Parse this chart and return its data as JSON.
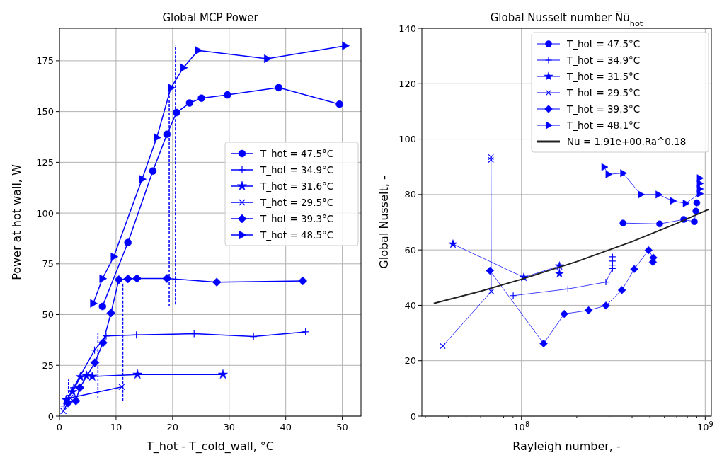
{
  "chart_data": [
    {
      "type": "line",
      "title": "Global MCP Power",
      "xlabel": "T_hot - T_cold_wall, °C",
      "ylabel": "Power at hot wall, W",
      "xlim": [
        0,
        53.3
      ],
      "ylim": [
        0,
        191
      ],
      "xticks": [
        0,
        10,
        20,
        30,
        40,
        50
      ],
      "yticks": [
        0,
        25,
        50,
        75,
        100,
        125,
        150,
        175
      ],
      "grid": true,
      "legend": "right",
      "series": [
        {
          "name": "T_hot = 47.5°C",
          "color": "#0000ff",
          "marker": "circle",
          "x": [
            7.6,
            12.1,
            16.5,
            19.0,
            20.7,
            23.0,
            25.1,
            29.7,
            38.75,
            49.5
          ],
          "values": [
            54.0,
            85.5,
            120.7,
            138.8,
            149.5,
            154.2,
            156.6,
            158.2,
            161.8,
            153.6
          ]
        },
        {
          "name": "T_hot = 34.9°C",
          "color": "#0000ff",
          "marker": "cross",
          "x": [
            0.8,
            2.5,
            4.3,
            6.2,
            8.25,
            13.6,
            23.8,
            34.3,
            43.5
          ],
          "values": [
            5,
            14,
            null,
            32.5,
            39.5,
            40.0,
            40.6,
            39.2,
            41.5
          ]
        },
        {
          "name": "T_hot = 31.6°C",
          "color": "#0000ff",
          "marker": "star",
          "x": [
            1.2,
            2.3,
            3.7,
            4.8,
            5.8,
            13.8,
            28.9
          ],
          "values": [
            8,
            12,
            19.3,
            19.9,
            19.5,
            20.5,
            20.5
          ]
        },
        {
          "name": "T_hot = 29.5°C",
          "color": "#0000ff",
          "marker": "x",
          "x": [
            0.7,
            1.9,
            3.6,
            11.0
          ],
          "values": [
            2.5,
            9,
            null,
            14.4
          ]
        },
        {
          "name": "T_hot = 39.3°C",
          "color": "#0000ff",
          "marker": "diamond",
          "x": [
            1.5,
            2.9,
            3.6,
            6.25,
            7.7,
            9.1,
            10.5,
            12.1,
            13.7,
            19.0,
            27.8,
            43.0
          ],
          "values": [
            6.5,
            7.5,
            14,
            26.3,
            36.2,
            50.8,
            67.2,
            67.6,
            67.8,
            67.8,
            66.0,
            66.6
          ]
        },
        {
          "name": "T_hot = 48.5°C",
          "color": "#0000ff",
          "marker": "triangle",
          "x": [
            5.96,
            7.6,
            9.6,
            14.6,
            17.2,
            19.7,
            21.9,
            24.5,
            36.7,
            50.5
          ],
          "values": [
            55.5,
            67.7,
            78.5,
            116.7,
            137.2,
            161.7,
            171.6,
            180.1,
            176.0,
            182.4
          ]
        },
        {
          "color": "#0000ff",
          "marker": "none",
          "line_style": "dashed",
          "x": [
            1.6,
            1.6
          ],
          "values": [
            7,
            18
          ]
        },
        {
          "color": "#0000ff",
          "marker": "none",
          "line_style": "dashed",
          "x": [
            6.8,
            6.8
          ],
          "values": [
            8.7,
            41
          ]
        },
        {
          "color": "#0000ff",
          "marker": "none",
          "line_style": "dashed",
          "x": [
            11.2,
            11.2
          ],
          "values": [
            7.4,
            65.7
          ]
        },
        {
          "color": "#0000ff",
          "marker": "none",
          "line_style": "dashed",
          "x": [
            19.4,
            19.4
          ],
          "values": [
            54,
            161
          ]
        },
        {
          "color": "#0000ff",
          "marker": "none",
          "line_style": "dashed",
          "x": [
            20.5,
            20.5
          ],
          "values": [
            55,
            182.7
          ]
        }
      ]
    },
    {
      "type": "line",
      "title": "Global Nusselt number N̅u̅$_{hot}$",
      "xlabel": "Rayleigh number, -",
      "ylabel": "Global Nusselt, -",
      "log": "x",
      "xlim": [
        28700000,
        1080000000
      ],
      "ylim": [
        0,
        140
      ],
      "xticks": [
        {
          "value": 30000000,
          "label": null
        },
        {
          "value": 40000000,
          "label": null
        },
        {
          "value": 50000000,
          "label": null
        },
        {
          "value": 60000000,
          "label": null
        },
        {
          "value": 70000000,
          "label": null
        },
        {
          "value": 80000000,
          "label": null
        },
        {
          "value": 90000000,
          "label": null
        },
        {
          "value": 100000000,
          "label": "10$^{8}$"
        },
        {
          "value": 200000000,
          "label": null
        },
        {
          "value": 300000000,
          "label": null
        },
        {
          "value": 400000000,
          "label": null
        },
        {
          "value": 500000000,
          "label": null
        },
        {
          "value": 600000000,
          "label": null
        },
        {
          "value": 700000000,
          "label": null
        },
        {
          "value": 800000000,
          "label": null
        },
        {
          "value": 900000000,
          "label": null
        },
        {
          "value": 1000000000,
          "label": "10$^{9}$"
        }
      ],
      "yticks": [
        0,
        20,
        40,
        60,
        80,
        100,
        120,
        140
      ],
      "grid": true,
      "legend": "top right",
      "series": [
        {
          "name": "T_hot = 47.5°C",
          "color": "#0000ff",
          "marker": "circle",
          "x": [
            357000000,
            565000000,
            764000000,
            873000000,
            890000000,
            900000000
          ],
          "values": [
            69.7,
            69.4,
            71.0,
            70.2,
            74,
            77
          ]
        },
        {
          "name": "T_hot = 34.9°C",
          "color": "#0000ff",
          "marker": "cross",
          "x": [
            90200000,
            179000000,
            288000000,
            313000000,
            313000000,
            313000000,
            313000000
          ],
          "values": [
            43.5,
            45.9,
            48.4,
            53.3,
            54.5,
            56,
            57.5
          ]
        },
        {
          "name": "T_hot = 31.5°C",
          "color": "#0000ff",
          "marker": "star",
          "x": [
            42400000,
            103000000,
            161000000,
            161000000
          ],
          "values": [
            62.1,
            50.1,
            54.2,
            51.4
          ]
        },
        {
          "name": "T_hot = 29.5°C",
          "color": "#0000ff",
          "marker": "x",
          "x": [
            37300000,
            68500000,
            68300000,
            68300000
          ],
          "values": [
            25.3,
            45.0,
            93.5,
            92.5
          ]
        },
        {
          "name": "T_hot = 39.3°C",
          "color": "#0000ff",
          "marker": "diamond",
          "x": [
            67400000,
            132000000,
            171000000,
            232000000,
            288000000,
            352000000,
            411000000,
            492000000,
            522000000,
            519000000
          ],
          "values": [
            52.5,
            26.2,
            36.9,
            38.2,
            39.9,
            45.5,
            53.1,
            59.9,
            57.2,
            55.6
          ]
        },
        {
          "name": "T_hot = 48.1°C",
          "color": "#0000ff",
          "marker": "triangle",
          "x": [
            282000000,
            297000000,
            357000000,
            446000000,
            556000000,
            665000000,
            782000000,
            933000000,
            933000000,
            933000000,
            933000000
          ],
          "values": [
            89.9,
            87.3,
            87.7,
            80.0,
            80.0,
            77.7,
            76.8,
            80.3,
            82,
            84,
            85.9
          ]
        },
        {
          "name": "Nu = 1.91e+00.Ra^0.18",
          "color": "#222222",
          "marker": "none",
          "x": [
            33300000,
            60000000,
            100000000,
            200000000,
            400000000,
            700000000,
            1050000000
          ],
          "values": [
            40.7,
            45.1,
            49.4,
            55.8,
            63.0,
            69.6,
            74.7
          ]
        }
      ]
    }
  ]
}
